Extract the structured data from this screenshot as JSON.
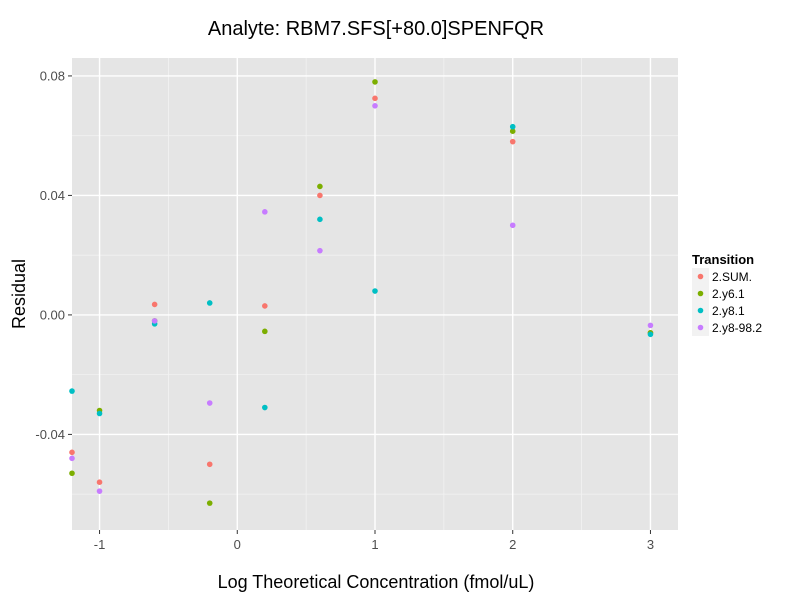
{
  "chart_data": {
    "type": "scatter",
    "title": "Analyte: RBM7.SFS[+80.0]SPENFQR",
    "xlabel": "Log Theoretical Concentration (fmol/uL)",
    "ylabel": "Residual",
    "xlim": [
      -1.2,
      3.2
    ],
    "ylim": [
      -0.072,
      0.086
    ],
    "x_ticks": [
      -1,
      0,
      1,
      2,
      3
    ],
    "x_tick_labels": [
      "-1",
      "0",
      "1",
      "2",
      "3"
    ],
    "y_ticks": [
      -0.04,
      0.0,
      0.04,
      0.08
    ],
    "y_tick_labels": [
      "-0.04",
      "0.00",
      "0.04",
      "0.08"
    ],
    "grid": true,
    "legend": {
      "title": "Transition",
      "position": "right"
    },
    "series": [
      {
        "name": "2.SUM.",
        "color": "#F8766D",
        "points": [
          [
            -1.2,
            -0.046
          ],
          [
            -1.0,
            -0.056
          ],
          [
            -0.6,
            0.0035
          ],
          [
            -0.2,
            -0.05
          ],
          [
            0.2,
            0.003
          ],
          [
            0.6,
            0.04
          ],
          [
            1.0,
            0.0725
          ],
          [
            2.0,
            0.058
          ],
          [
            3.0,
            -0.006
          ]
        ]
      },
      {
        "name": "2.y6.1",
        "color": "#7CAE00",
        "points": [
          [
            -1.2,
            -0.053
          ],
          [
            -1.0,
            -0.032
          ],
          [
            -0.6,
            -0.002
          ],
          [
            -0.2,
            -0.063
          ],
          [
            0.2,
            -0.0055
          ],
          [
            0.6,
            0.043
          ],
          [
            1.0,
            0.078
          ],
          [
            2.0,
            0.0615
          ],
          [
            3.0,
            -0.006
          ]
        ]
      },
      {
        "name": "2.y8.1",
        "color": "#00BFC4",
        "points": [
          [
            -1.2,
            -0.0255
          ],
          [
            -1.0,
            -0.033
          ],
          [
            -0.6,
            -0.003
          ],
          [
            -0.2,
            0.004
          ],
          [
            0.2,
            -0.031
          ],
          [
            0.6,
            0.032
          ],
          [
            1.0,
            0.008
          ],
          [
            2.0,
            0.063
          ],
          [
            3.0,
            -0.0065
          ]
        ]
      },
      {
        "name": "2.y8-98.2",
        "color": "#C77CFF",
        "points": [
          [
            -1.2,
            -0.048
          ],
          [
            -1.0,
            -0.059
          ],
          [
            -0.6,
            -0.002
          ],
          [
            -0.2,
            -0.0295
          ],
          [
            0.2,
            0.0345
          ],
          [
            0.6,
            0.0215
          ],
          [
            1.0,
            0.07
          ],
          [
            2.0,
            0.03
          ],
          [
            3.0,
            -0.0035
          ]
        ]
      }
    ]
  }
}
